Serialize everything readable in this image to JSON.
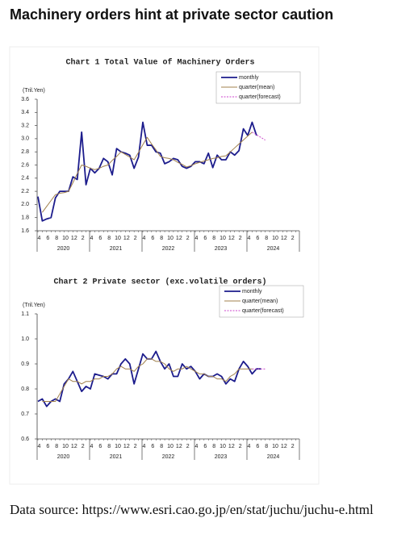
{
  "header": {
    "title": "Machinery orders hint at private sector caution"
  },
  "chart_data": [
    {
      "type": "line",
      "title": "Chart 1 Total Value of Machinery Orders",
      "y_label": "(Tril.Yen)",
      "categories": [
        "4",
        null,
        "6",
        null,
        "8",
        null,
        "10",
        null,
        "12",
        null,
        "2",
        null,
        "4",
        null,
        "6",
        null,
        "8",
        null,
        "10",
        null,
        "12",
        null,
        "2",
        null,
        "4",
        null,
        "6",
        null,
        "8",
        null,
        "10",
        null,
        "12",
        null,
        "2",
        null,
        "4",
        null,
        "6",
        null,
        "8",
        null,
        "10",
        null,
        "12",
        null,
        "2",
        null,
        "4",
        null,
        "6",
        null,
        "8",
        null,
        "10",
        null,
        "12",
        null,
        "2",
        null
      ],
      "year_labels": [
        "2020",
        "2021",
        "2022",
        "2023",
        "2024"
      ],
      "ylim": [
        1.6,
        3.6
      ],
      "yticks": [
        1.6,
        1.8,
        {
          "value": 2,
          "label": "2.0"
        },
        2.2,
        2.4,
        2.6,
        2.8,
        {
          "value": 3,
          "label": "3.0"
        },
        3.2,
        3.4,
        3.6
      ],
      "series": [
        {
          "name": "monthly",
          "color": "#1c1c8c",
          "style": "solid",
          "values": [
            2.12,
            1.75,
            1.78,
            1.8,
            2.1,
            2.2,
            2.2,
            2.2,
            2.42,
            2.38,
            3.1,
            2.3,
            2.55,
            2.48,
            2.55,
            2.7,
            2.65,
            2.45,
            2.85,
            2.8,
            2.78,
            2.75,
            2.55,
            2.72,
            3.25,
            2.9,
            2.9,
            2.8,
            2.78,
            2.62,
            2.65,
            2.7,
            2.68,
            2.58,
            2.55,
            2.58,
            2.65,
            2.65,
            2.62,
            2.78,
            2.56,
            2.75,
            2.68,
            2.68,
            2.8,
            2.75,
            2.82,
            3.15,
            3.05,
            3.25,
            3.05,
            null,
            null,
            null,
            null,
            null,
            null,
            null,
            null,
            null
          ]
        },
        {
          "name": "quarter(mean)",
          "color": "#a0804c",
          "style": "solid",
          "values": [
            null,
            1.88,
            1.97,
            2.06,
            2.15,
            2.17,
            2.18,
            2.2,
            2.33,
            2.47,
            2.6,
            2.58,
            2.55,
            2.53,
            2.55,
            2.58,
            2.6,
            2.67,
            2.73,
            2.8,
            2.76,
            2.72,
            2.68,
            2.79,
            2.91,
            3.02,
            2.92,
            2.83,
            2.73,
            2.71,
            2.7,
            2.68,
            2.64,
            2.61,
            2.57,
            2.59,
            2.62,
            2.64,
            2.66,
            2.68,
            2.7,
            2.71,
            2.73,
            2.74,
            2.8,
            2.86,
            2.92,
            2.98,
            3.04,
            3.1,
            null,
            null,
            null,
            null,
            null,
            null,
            null,
            null,
            null,
            null
          ]
        },
        {
          "name": "quarter(forecast)",
          "color": "#cc44cc",
          "style": "dashed",
          "values": [
            null,
            null,
            null,
            null,
            null,
            null,
            null,
            null,
            null,
            null,
            null,
            null,
            null,
            null,
            null,
            null,
            null,
            null,
            null,
            null,
            null,
            null,
            null,
            null,
            null,
            null,
            null,
            null,
            null,
            null,
            null,
            null,
            null,
            null,
            null,
            null,
            null,
            null,
            null,
            null,
            null,
            null,
            null,
            null,
            null,
            null,
            null,
            null,
            null,
            3.1,
            3.06,
            3.02,
            2.98,
            null,
            null,
            null,
            null,
            null,
            null,
            null
          ]
        }
      ]
    },
    {
      "type": "line",
      "title": "Chart 2 Private sector (exc.volatile orders)",
      "y_label": "(Tril.Yen)",
      "categories": [
        "4",
        null,
        "6",
        null,
        "8",
        null,
        "10",
        null,
        "12",
        null,
        "2",
        null,
        "4",
        null,
        "6",
        null,
        "8",
        null,
        "10",
        null,
        "12",
        null,
        "2",
        null,
        "4",
        null,
        "6",
        null,
        "8",
        null,
        "10",
        null,
        "12",
        null,
        "2",
        null,
        "4",
        null,
        "6",
        null,
        "8",
        null,
        "10",
        null,
        "12",
        null,
        "2",
        null,
        "4",
        null,
        "6",
        null,
        "8",
        null,
        "10",
        null,
        "12",
        null,
        "2",
        null
      ],
      "year_labels": [
        "2020",
        "2021",
        "2022",
        "2023",
        "2024"
      ],
      "ylim": [
        0.6,
        1.1
      ],
      "yticks": [
        0.6,
        0.7,
        0.8,
        0.9,
        {
          "value": 1,
          "label": "1.0"
        },
        1.1
      ],
      "series": [
        {
          "name": "monthly",
          "color": "#1c1c8c",
          "style": "solid",
          "values": [
            0.75,
            0.76,
            0.73,
            0.75,
            0.76,
            0.75,
            0.82,
            0.84,
            0.87,
            0.83,
            0.79,
            0.81,
            0.8,
            0.86,
            0.855,
            0.85,
            0.84,
            0.86,
            0.86,
            0.9,
            0.92,
            0.9,
            0.82,
            0.88,
            0.94,
            0.92,
            0.92,
            0.95,
            0.91,
            0.88,
            0.9,
            0.85,
            0.85,
            0.9,
            0.88,
            0.89,
            0.87,
            0.84,
            0.86,
            0.85,
            0.85,
            0.86,
            0.85,
            0.82,
            0.84,
            0.83,
            0.88,
            0.91,
            0.89,
            0.86,
            0.88,
            0.88,
            null,
            null,
            null,
            null,
            null,
            null,
            null,
            null
          ]
        },
        {
          "name": "quarter(mean)",
          "color": "#a0804c",
          "style": "solid",
          "values": [
            null,
            0.75,
            0.75,
            0.75,
            0.75,
            0.78,
            0.81,
            0.84,
            0.83,
            0.83,
            0.82,
            0.83,
            0.83,
            0.84,
            0.84,
            0.85,
            0.85,
            0.86,
            0.88,
            0.89,
            0.88,
            0.88,
            0.87,
            0.89,
            0.9,
            0.92,
            0.92,
            0.91,
            0.91,
            0.9,
            0.88,
            0.87,
            0.88,
            0.88,
            0.89,
            0.88,
            0.87,
            0.86,
            0.86,
            0.85,
            0.85,
            0.84,
            0.84,
            0.83,
            0.85,
            0.86,
            0.88,
            0.88,
            0.88,
            0.88,
            null,
            null,
            null,
            null,
            null,
            null,
            null,
            null,
            null,
            null
          ]
        },
        {
          "name": "quarter(forecast)",
          "color": "#cc44cc",
          "style": "dashed",
          "values": [
            null,
            null,
            null,
            null,
            null,
            null,
            null,
            null,
            null,
            null,
            null,
            null,
            null,
            null,
            null,
            null,
            null,
            null,
            null,
            null,
            null,
            null,
            null,
            null,
            null,
            null,
            null,
            null,
            null,
            null,
            null,
            null,
            null,
            null,
            null,
            null,
            null,
            null,
            null,
            null,
            null,
            null,
            null,
            null,
            null,
            null,
            null,
            null,
            null,
            0.88,
            0.88,
            0.88,
            0.88,
            null,
            null,
            null,
            null,
            null,
            null,
            null
          ]
        }
      ]
    }
  ],
  "footer": {
    "source": "Data source: https://www.esri.cao.go.jp/en/stat/juchu/juchu-e.html"
  }
}
